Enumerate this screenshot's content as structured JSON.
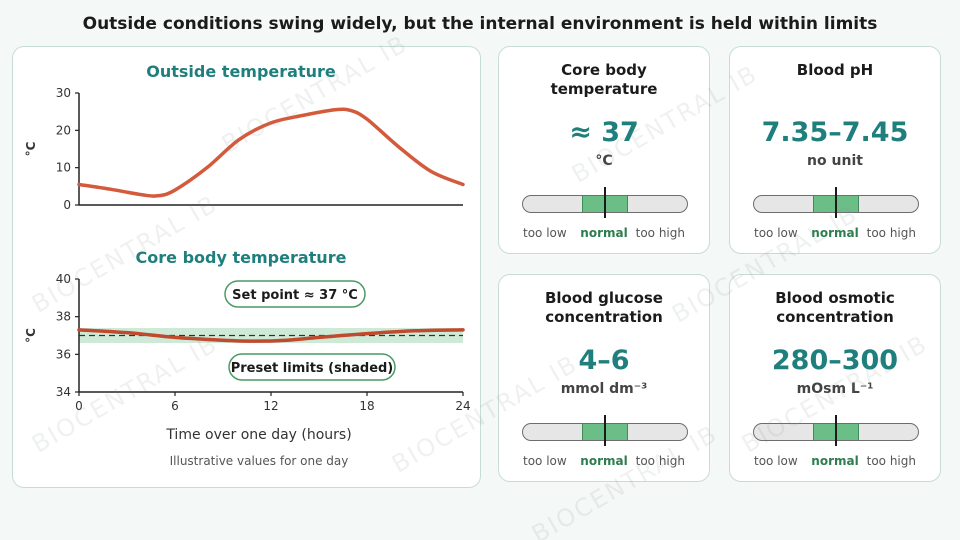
{
  "title": "Outside conditions swing widely, but the internal environment is held within limits",
  "watermark": "BIOCENTRAL IB",
  "chart_data": [
    {
      "type": "line",
      "title": "Outside temperature",
      "ylabel": "°C",
      "xlim": [
        0,
        24
      ],
      "ylim": [
        0,
        30
      ],
      "yticks": [
        0,
        10,
        20,
        30
      ],
      "x": [
        0,
        2,
        4,
        5,
        6,
        8,
        10,
        12,
        14,
        16,
        17,
        18,
        20,
        22,
        24
      ],
      "values": [
        5.5,
        4.2,
        2.7,
        2.5,
        4.0,
        10,
        17.5,
        22,
        24,
        25.5,
        25.3,
        23,
        15.5,
        9,
        5.5
      ],
      "color": "#d45a3c"
    },
    {
      "type": "line",
      "title": "Core body temperature",
      "xlabel": "Time over one day (hours)",
      "ylabel": "°C",
      "xlim": [
        0,
        24
      ],
      "ylim": [
        34,
        40
      ],
      "xticks": [
        0,
        6,
        12,
        18,
        24
      ],
      "yticks": [
        34,
        36,
        38,
        40
      ],
      "x": [
        0,
        3,
        6,
        9,
        11,
        13,
        15,
        18,
        21,
        24
      ],
      "values": [
        37.3,
        37.15,
        36.9,
        36.75,
        36.7,
        36.75,
        36.9,
        37.1,
        37.25,
        37.3
      ],
      "set_point": 37,
      "band": [
        36.6,
        37.4
      ],
      "color": "#c04a2e",
      "annotations": [
        "Set point ≈ 37 °C",
        "Preset limits (shaded)"
      ],
      "note": "Illustrative values for one day"
    }
  ],
  "cards": [
    {
      "title": "Core body temperature",
      "value": "≈ 37",
      "unit": "°C",
      "normal_range": [
        0.36,
        0.64
      ],
      "marker": 0.5,
      "low": "too low",
      "normal": "normal",
      "high": "too high"
    },
    {
      "title": "Blood pH",
      "value": "7.35–7.45",
      "unit": "no unit",
      "normal_range": [
        0.36,
        0.64
      ],
      "marker": 0.5,
      "low": "too low",
      "normal": "normal",
      "high": "too high"
    },
    {
      "title": "Blood glucose concentration",
      "value": "4–6",
      "unit": "mmol dm⁻³",
      "normal_range": [
        0.36,
        0.64
      ],
      "marker": 0.5,
      "low": "too low",
      "normal": "normal",
      "high": "too high"
    },
    {
      "title": "Blood osmotic concentration",
      "value": "280–300",
      "unit": "mOsm L⁻¹",
      "normal_range": [
        0.36,
        0.64
      ],
      "marker": 0.5,
      "low": "too low",
      "normal": "normal",
      "high": "too high"
    }
  ],
  "colors": {
    "accent": "#1f7f7d",
    "normal": "#6bbf86",
    "curve": "#d45a3c",
    "band": "#cfe9d7"
  }
}
